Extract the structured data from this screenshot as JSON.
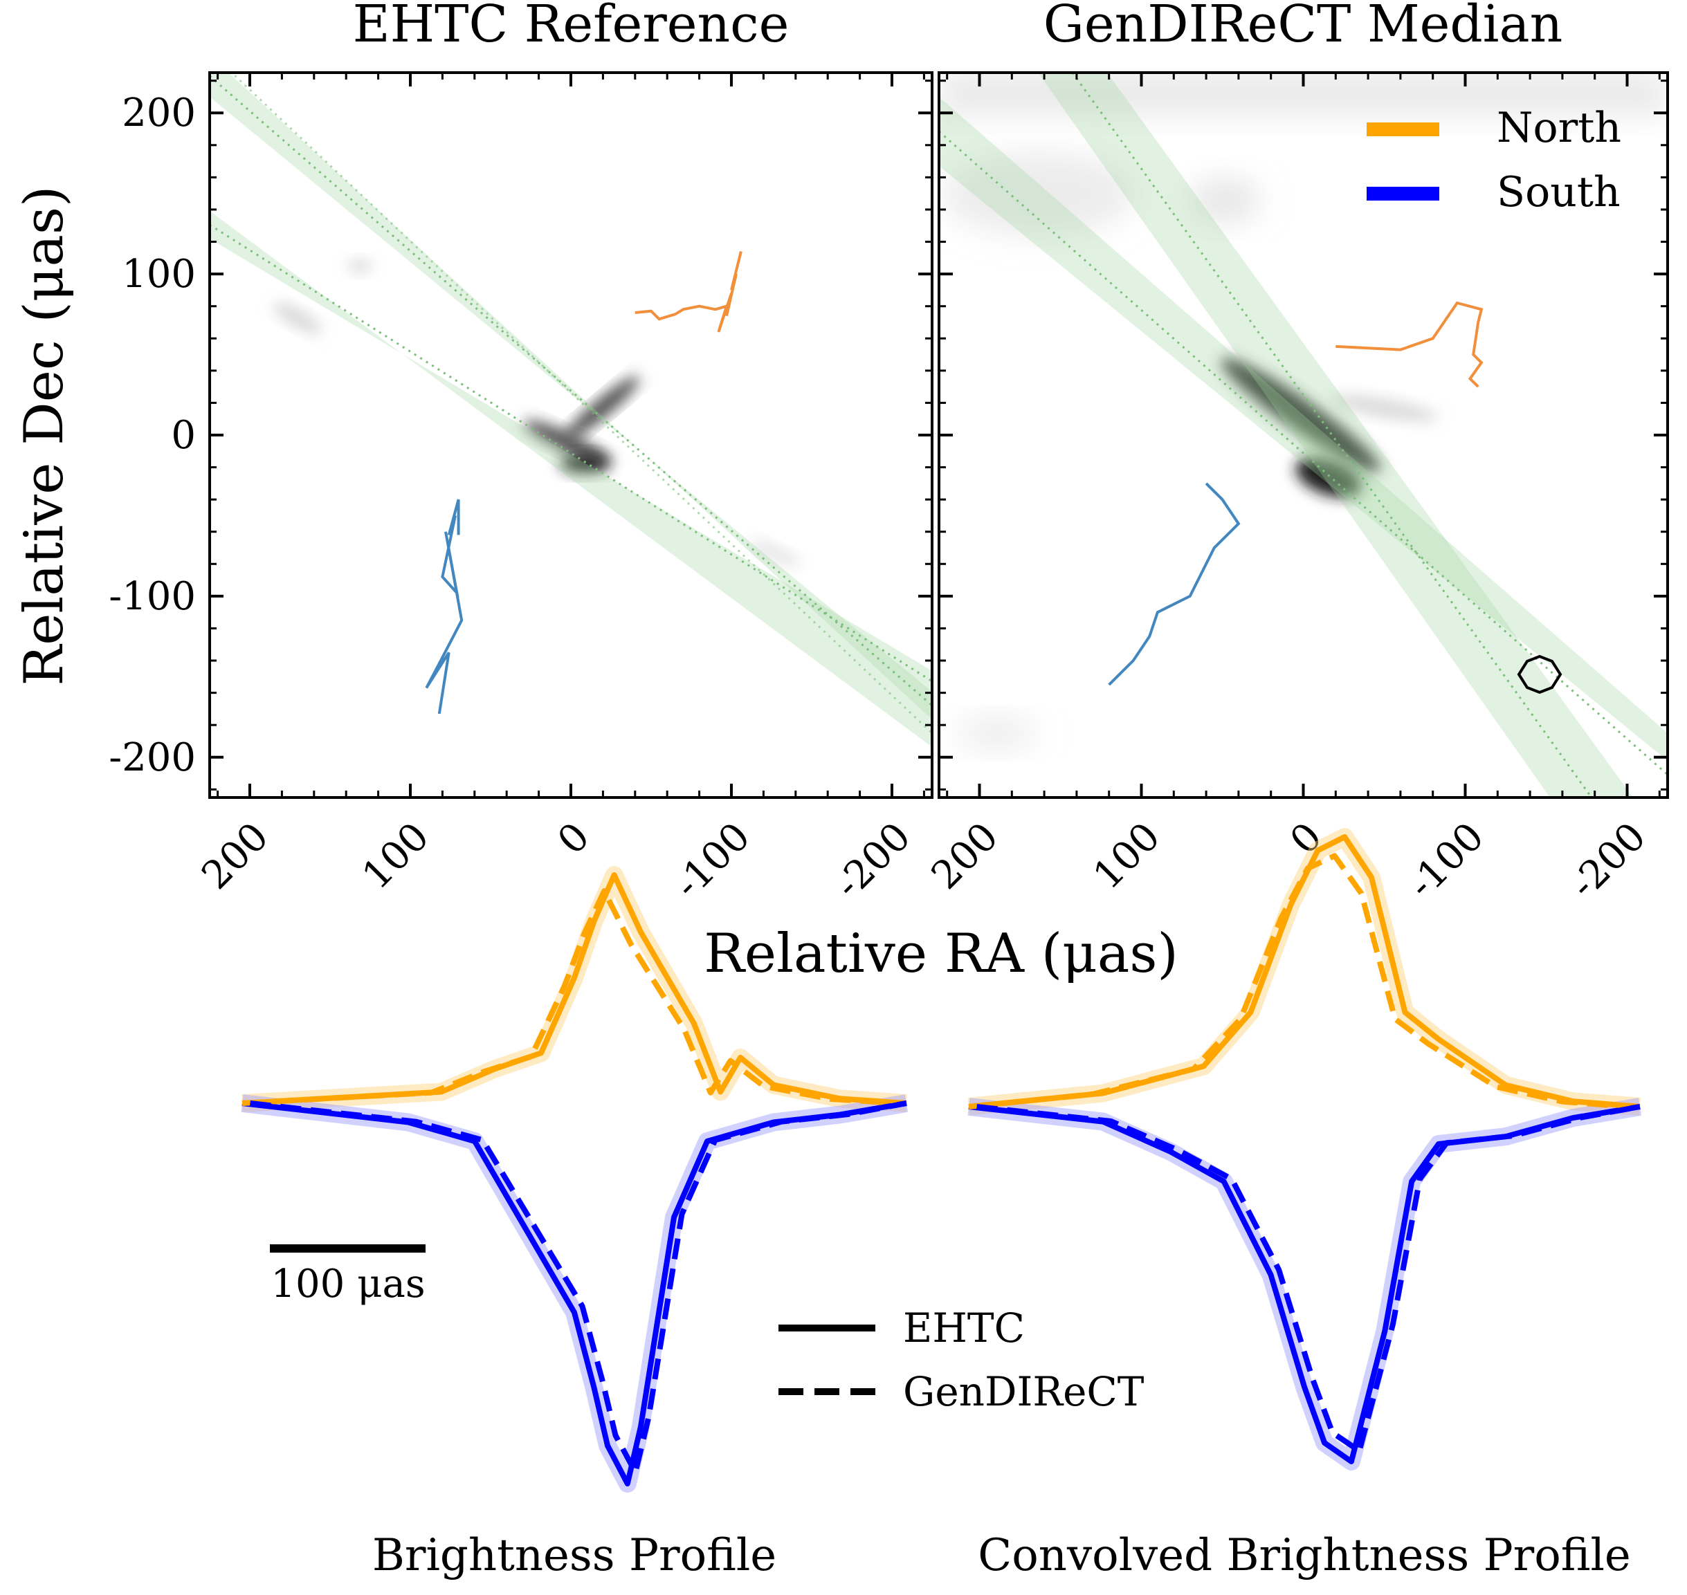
{
  "figure": {
    "xlabel": "Relative RA (μas)",
    "ylabel": "Relative Dec (μas)",
    "scale_bar_label": "100 μas"
  },
  "panels": [
    {
      "title": "EHTC Reference"
    },
    {
      "title": "GenDIReCT Median"
    }
  ],
  "profiles": [
    {
      "title": "Brightness Profile"
    },
    {
      "title": "Convolved Brightness Profile"
    }
  ],
  "legend_ns": [
    {
      "label": "North",
      "color": "#ffa500"
    },
    {
      "label": "South",
      "color": "#0000ff"
    }
  ],
  "legend_style": [
    {
      "label": "EHTC",
      "style": "solid"
    },
    {
      "label": "GenDIReCT",
      "style": "dashed"
    }
  ],
  "colors": {
    "north_line": "#f08326",
    "south_line": "#2e7ab8",
    "jet_band": "#9fd49f",
    "image_dark": "#111111"
  },
  "chart_data": [
    {
      "type": "line",
      "title": "EHTC Reference",
      "xlabel": "Relative RA (μas)",
      "ylabel": "Relative Dec (μas)",
      "xlim": [
        225,
        -225
      ],
      "ylim": [
        -225,
        225
      ],
      "x_ticks": [
        200,
        100,
        0,
        -100,
        -200
      ],
      "y_ticks": [
        200,
        100,
        0,
        -100,
        -200
      ],
      "x_tick_labels": [
        "200",
        "100",
        "0",
        "-100",
        "-200"
      ],
      "y_tick_labels": [
        "200",
        "100",
        "0",
        "-100",
        "-200"
      ],
      "series": [
        {
          "name": "North",
          "x": [
            -40,
            -50,
            -55,
            -65,
            -70,
            -80,
            -90,
            -97,
            -92,
            -100,
            -97,
            -103,
            -100,
            -106
          ],
          "y": [
            76,
            77,
            72,
            75,
            78,
            80,
            78,
            80,
            64,
            88,
            74,
            100,
            90,
            114
          ]
        },
        {
          "name": "South",
          "x": [
            70,
            70,
            76,
            72,
            80,
            71,
            78,
            68,
            80,
            90,
            76,
            82
          ],
          "y": [
            -62,
            -40,
            -62,
            -50,
            -88,
            -98,
            -60,
            -115,
            -138,
            -157,
            -135,
            -173
          ]
        }
      ]
    },
    {
      "type": "line",
      "title": "GenDIReCT Median",
      "xlabel": "Relative RA (μas)",
      "ylabel": "Relative Dec (μas)",
      "xlim": [
        225,
        -225
      ],
      "ylim": [
        -225,
        225
      ],
      "x_ticks": [
        200,
        100,
        0,
        -100,
        -200
      ],
      "y_ticks": [
        200,
        100,
        0,
        -100,
        -200
      ],
      "x_tick_labels": [
        "200",
        "100",
        "0",
        "-100",
        "-200"
      ],
      "y_tick_labels": [
        "200",
        "100",
        "0",
        "-100",
        "-200"
      ],
      "series": [
        {
          "name": "North",
          "x": [
            -20,
            -60,
            -80,
            -95,
            -110,
            -108,
            -105,
            -110,
            -103,
            -108
          ],
          "y": [
            55,
            53,
            60,
            82,
            78,
            70,
            50,
            45,
            35,
            30
          ]
        },
        {
          "name": "South",
          "x": [
            60,
            50,
            40,
            55,
            70,
            90,
            95,
            105,
            115,
            120
          ],
          "y": [
            -30,
            -40,
            -55,
            -70,
            -100,
            -110,
            -125,
            -140,
            -150,
            -155
          ]
        }
      ]
    },
    {
      "type": "line",
      "title": "Brightness Profile",
      "series": [
        {
          "name": "North",
          "x": [
            0,
            0.3,
            0.38,
            0.45,
            0.5,
            0.53,
            0.56,
            0.6,
            0.63,
            0.68,
            0.72,
            0.75,
            0.8,
            0.9,
            1
          ],
          "values": [
            0,
            0.05,
            0.15,
            0.22,
            0.55,
            0.8,
            1.0,
            0.75,
            0.6,
            0.35,
            0.05,
            0.2,
            0.08,
            0.02,
            0
          ]
        },
        {
          "name": "South",
          "x": [
            0,
            0.25,
            0.35,
            0.4,
            0.45,
            0.5,
            0.53,
            0.55,
            0.58,
            0.6,
            0.65,
            0.7,
            0.8,
            0.9,
            1
          ],
          "values": [
            0,
            -0.05,
            -0.1,
            -0.25,
            -0.4,
            -0.55,
            -0.75,
            -0.9,
            -1.0,
            -0.85,
            -0.3,
            -0.1,
            -0.05,
            -0.03,
            0
          ]
        }
      ]
    },
    {
      "type": "line",
      "title": "Convolved Brightness Profile",
      "series": [
        {
          "name": "North",
          "x": [
            0,
            0.2,
            0.35,
            0.42,
            0.48,
            0.52,
            0.56,
            0.6,
            0.65,
            0.7,
            0.8,
            0.9,
            1
          ],
          "values": [
            0,
            0.05,
            0.15,
            0.35,
            0.75,
            0.95,
            1.0,
            0.85,
            0.35,
            0.25,
            0.08,
            0.02,
            0
          ]
        },
        {
          "name": "South",
          "x": [
            0,
            0.2,
            0.3,
            0.38,
            0.45,
            0.5,
            0.53,
            0.57,
            0.62,
            0.66,
            0.7,
            0.8,
            0.9,
            1
          ],
          "values": [
            0,
            -0.04,
            -0.12,
            -0.2,
            -0.45,
            -0.75,
            -0.9,
            -0.95,
            -0.6,
            -0.2,
            -0.1,
            -0.08,
            -0.03,
            0
          ]
        }
      ]
    }
  ]
}
